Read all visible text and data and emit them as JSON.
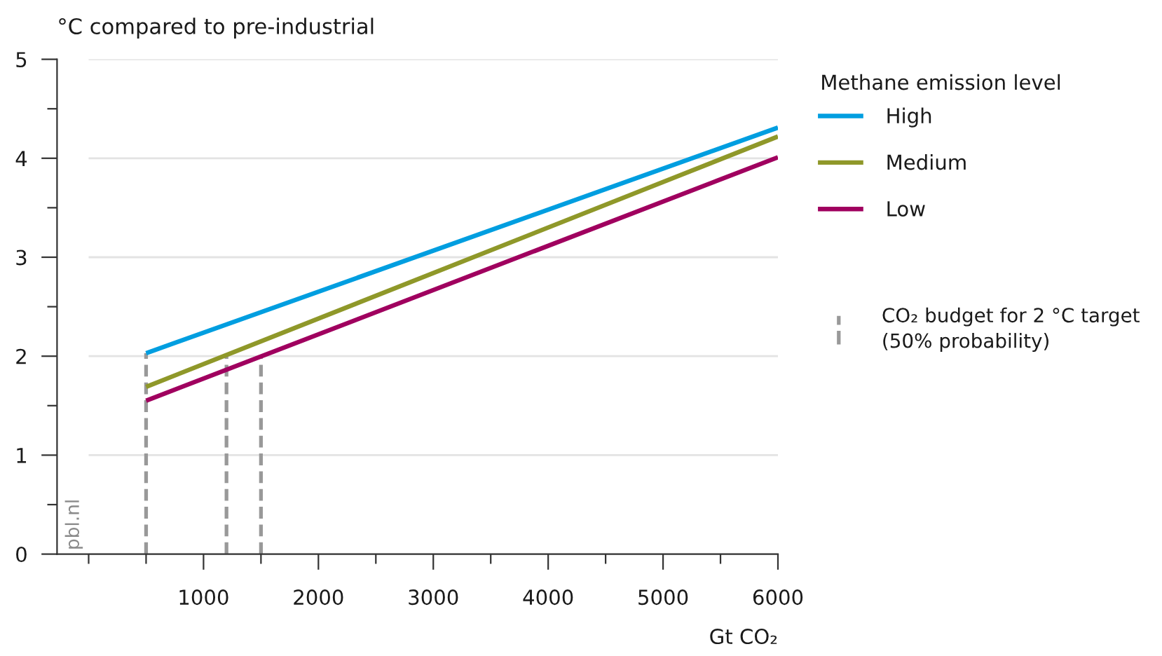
{
  "chart_data": {
    "type": "line",
    "ylabel": "°C compared to pre-industrial",
    "xlabel": "Gt CO₂",
    "legend_title": "Methane emission level",
    "series": [
      {
        "name": "High",
        "color": "#009ee0",
        "line_style": "solid",
        "x": [
          500,
          6000
        ],
        "values": [
          2.03,
          4.31
        ]
      },
      {
        "name": "Medium",
        "color": "#8f9829",
        "line_style": "solid",
        "x": [
          500,
          6000
        ],
        "values": [
          1.69,
          4.22
        ]
      },
      {
        "name": "Low",
        "color": "#a0005f",
        "line_style": "solid",
        "x": [
          500,
          6000
        ],
        "values": [
          1.55,
          4.01
        ]
      },
      {
        "name": "CO₂ budget for 2 °C target\n(50% probability)",
        "color": "#999999",
        "line_style": "dashed",
        "x": [
          500,
          500
        ],
        "values": [
          0,
          2.03
        ]
      },
      {
        "color": "#999999",
        "line_style": "dashed",
        "x": [
          1200,
          1200
        ],
        "values": [
          0,
          2.0
        ]
      },
      {
        "color": "#999999",
        "line_style": "dashed",
        "x": [
          1500,
          1500
        ],
        "values": [
          0,
          2.0
        ]
      }
    ],
    "xlim": [
      -275,
      6000
    ],
    "xticks": [
      {
        "value": 0,
        "label": null
      },
      {
        "value": 500,
        "label": null
      },
      1000,
      {
        "value": 1500,
        "label": null
      },
      2000,
      {
        "value": 2500,
        "label": null
      },
      3000,
      {
        "value": 3500,
        "label": null
      },
      4000,
      {
        "value": 4500,
        "label": null
      },
      5000,
      {
        "value": 5500,
        "label": null
      },
      6000
    ],
    "ylim": [
      0,
      5
    ],
    "yticks": [
      0,
      {
        "value": 0.5,
        "label": null
      },
      1,
      {
        "value": 1.5,
        "label": null
      },
      2,
      {
        "value": 2.5,
        "label": null
      },
      3,
      {
        "value": 3.5,
        "label": null
      },
      4,
      {
        "value": 4.5,
        "label": null
      },
      5
    ],
    "grid": "y",
    "legend": "right",
    "annotations": [
      "pbl.nl"
    ]
  }
}
